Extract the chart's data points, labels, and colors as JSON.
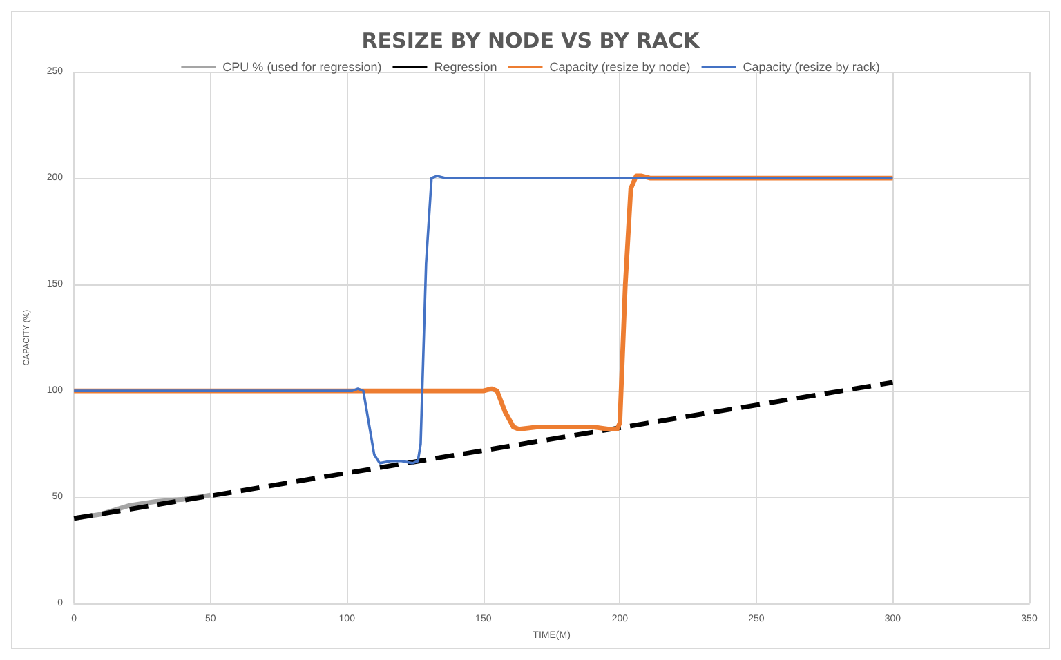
{
  "chart_data": {
    "type": "line",
    "title": "RESIZE BY NODE VS BY RACK",
    "xlabel": "TIME(M)",
    "ylabel": "CAPACITY (%)",
    "xlim": [
      0,
      350
    ],
    "xticks": [
      0,
      50,
      100,
      150,
      200,
      250,
      300,
      350
    ],
    "ylim": [
      0,
      250
    ],
    "yticks": [
      0,
      50,
      100,
      150,
      200,
      250
    ],
    "grid": true,
    "legend": "top",
    "marker": "none",
    "series": [
      {
        "name": "CPU % (used for regression)",
        "color": "#a5a5a5",
        "x": [
          0,
          10,
          20,
          30,
          40,
          50
        ],
        "values": [
          40,
          42,
          46,
          48,
          49,
          51
        ]
      },
      {
        "name": "Regression",
        "color": "#000000",
        "line_style": "dashed",
        "x": [
          0,
          300
        ],
        "values": [
          40,
          104
        ]
      },
      {
        "name": "Capacity (resize by node)",
        "color": "#ed7d31",
        "x": [
          0,
          150,
          153,
          155,
          158,
          161,
          163,
          170,
          190,
          196,
          199,
          200,
          202,
          204,
          206,
          208,
          211,
          300
        ],
        "values": [
          100,
          100,
          101,
          100,
          90,
          83,
          82,
          83,
          83,
          82,
          82,
          85,
          150,
          195,
          201,
          201,
          200,
          200
        ]
      },
      {
        "name": "Capacity (resize by rack)",
        "color": "#4472c4",
        "x": [
          0,
          102,
          104,
          106,
          108,
          110,
          112,
          116,
          120,
          124,
          126,
          127,
          129,
          131,
          133,
          136,
          300
        ],
        "values": [
          100,
          100,
          101,
          100,
          85,
          70,
          66,
          67,
          67,
          66,
          67,
          75,
          160,
          200,
          201,
          200,
          200
        ]
      }
    ]
  }
}
